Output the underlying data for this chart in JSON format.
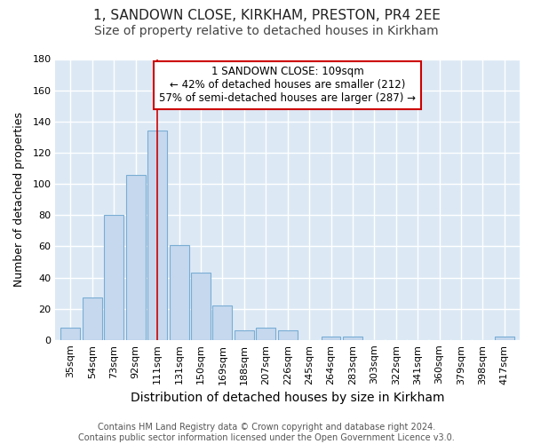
{
  "title1": "1, SANDOWN CLOSE, KIRKHAM, PRESTON, PR4 2EE",
  "title2": "Size of property relative to detached houses in Kirkham",
  "xlabel": "Distribution of detached houses by size in Kirkham",
  "ylabel": "Number of detached properties",
  "categories": [
    "35sqm",
    "54sqm",
    "73sqm",
    "92sqm",
    "111sqm",
    "131sqm",
    "150sqm",
    "169sqm",
    "188sqm",
    "207sqm",
    "226sqm",
    "245sqm",
    "264sqm",
    "283sqm",
    "303sqm",
    "322sqm",
    "341sqm",
    "360sqm",
    "379sqm",
    "398sqm",
    "417sqm"
  ],
  "values": [
    8,
    27,
    80,
    106,
    134,
    61,
    43,
    22,
    6,
    8,
    6,
    0,
    2,
    2,
    0,
    0,
    0,
    0,
    0,
    0,
    2
  ],
  "bar_color": "#c5d8ed",
  "bar_edge_color": "#7aadd4",
  "vline_index": 4,
  "vline_color": "#cc0000",
  "annotation_text": "1 SANDOWN CLOSE: 109sqm\n← 42% of detached houses are smaller (212)\n57% of semi-detached houses are larger (287) →",
  "annotation_box_color": "#ffffff",
  "annotation_box_edge": "#cc0000",
  "ylim": [
    0,
    180
  ],
  "yticks": [
    0,
    20,
    40,
    60,
    80,
    100,
    120,
    140,
    160,
    180
  ],
  "grid_color": "#ffffff",
  "bg_color": "#dce9f5",
  "fig_bg_color": "#ffffff",
  "footnote": "Contains HM Land Registry data © Crown copyright and database right 2024.\nContains public sector information licensed under the Open Government Licence v3.0.",
  "title1_fontsize": 11,
  "title2_fontsize": 10,
  "xlabel_fontsize": 10,
  "ylabel_fontsize": 9,
  "tick_fontsize": 8,
  "footnote_fontsize": 7,
  "annot_fontsize": 8.5
}
